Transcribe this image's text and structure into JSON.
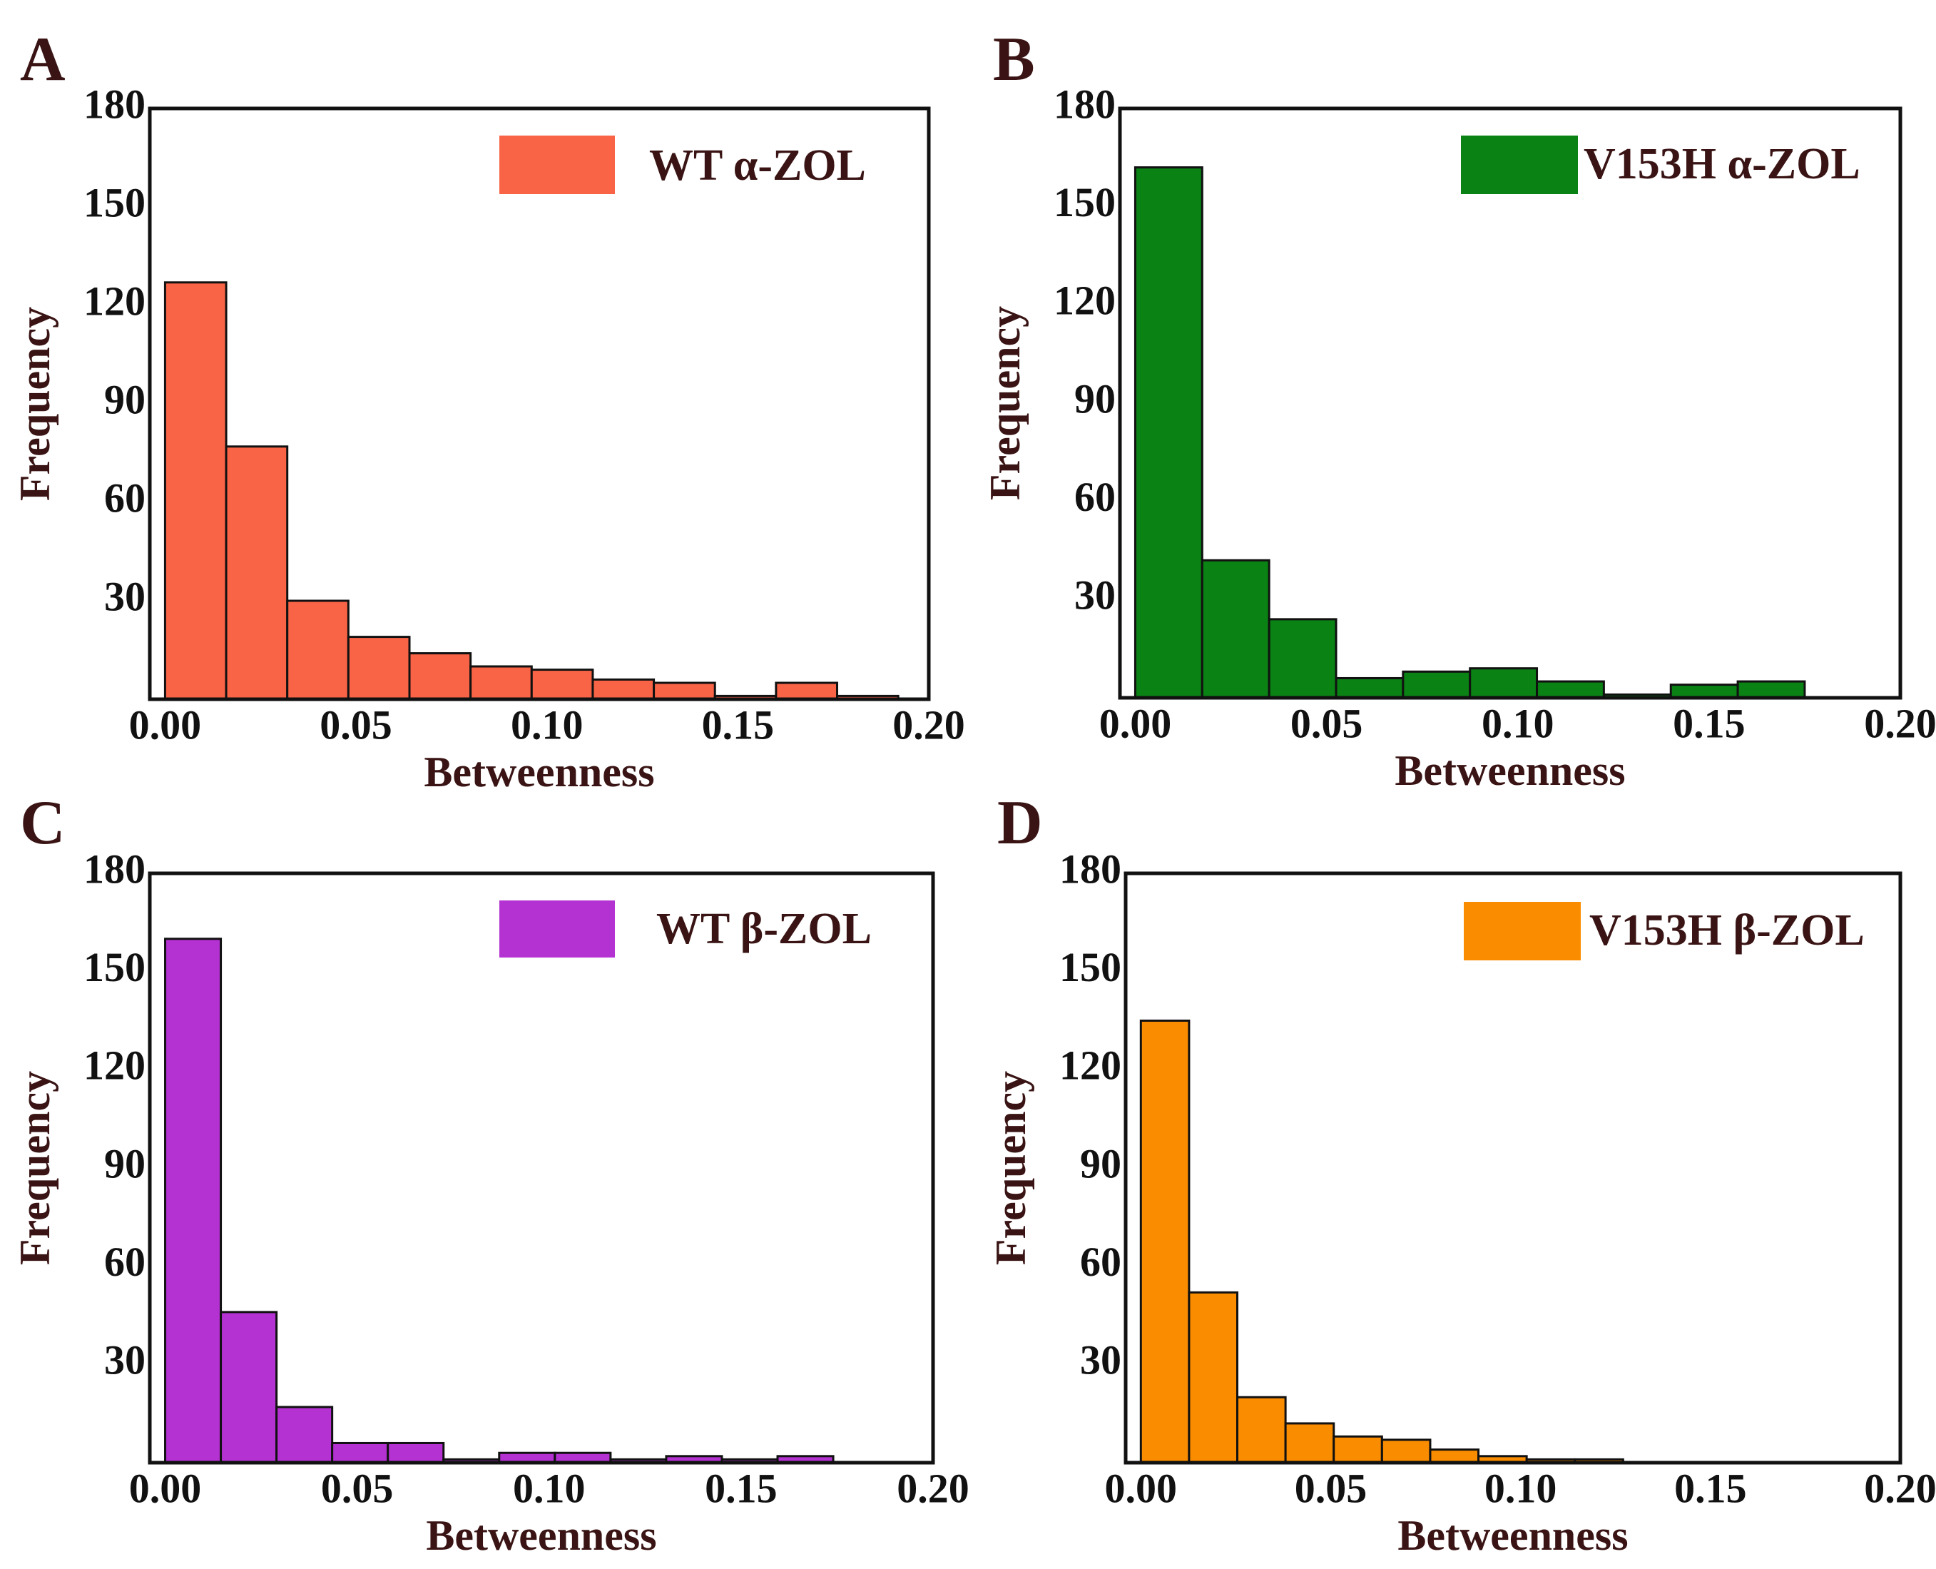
{
  "chart_data": [
    {
      "type": "bar",
      "panel": "A",
      "legend": "WT α-ZOL",
      "color": "#fa6446",
      "xlabel": "Betweenness",
      "ylabel": "Frequency",
      "xlim": [
        -0.004,
        0.2
      ],
      "ylim": [
        0,
        180
      ],
      "xticks": [
        "0.00",
        "0.05",
        "0.10",
        "0.15",
        "0.20"
      ],
      "yticks": [
        "30",
        "60",
        "90",
        "120",
        "150",
        "180"
      ],
      "bin_start": 0.0,
      "bin_width": 0.016,
      "values": [
        127,
        77,
        30,
        19,
        14,
        10,
        9,
        6,
        5,
        1,
        5,
        1
      ]
    },
    {
      "type": "bar",
      "panel": "B",
      "legend": "V153H α-ZOL",
      "color": "#0a8214",
      "xlabel": "Betweenness",
      "ylabel": "Frequency",
      "xlim": [
        -0.004,
        0.2
      ],
      "ylim": [
        0,
        180
      ],
      "xticks": [
        "0.00",
        "0.05",
        "0.10",
        "0.15",
        "0.20"
      ],
      "yticks": [
        "30",
        "60",
        "90",
        "120",
        "150",
        "180"
      ],
      "bin_start": 0.0,
      "bin_width": 0.0175,
      "values": [
        162,
        42,
        24,
        6,
        8,
        9,
        5,
        1,
        4,
        5
      ]
    },
    {
      "type": "bar",
      "panel": "C",
      "legend": "WT β-ZOL",
      "color": "#b432d2",
      "xlabel": "Betweenness",
      "ylabel": "Frequency",
      "xlim": [
        -0.004,
        0.2
      ],
      "ylim": [
        0,
        180
      ],
      "xticks": [
        "0.00",
        "0.05",
        "0.10",
        "0.15",
        "0.20"
      ],
      "yticks": [
        "30",
        "60",
        "90",
        "120",
        "150",
        "180"
      ],
      "bin_start": 0.0,
      "bin_width": 0.0145,
      "values": [
        160,
        46,
        17,
        6,
        6,
        1,
        3,
        3,
        1,
        2,
        1,
        2
      ]
    },
    {
      "type": "bar",
      "panel": "D",
      "legend": "V153H β-ZOL",
      "color": "#fa8c00",
      "xlabel": "Betweenness",
      "ylabel": "Frequency",
      "xlim": [
        -0.004,
        0.2
      ],
      "ylim": [
        0,
        180
      ],
      "xticks": [
        "0.00",
        "0.05",
        "0.10",
        "0.15",
        "0.20"
      ],
      "yticks": [
        "30",
        "60",
        "90",
        "120",
        "150",
        "180"
      ],
      "bin_start": 0.0,
      "bin_width": 0.0127,
      "values": [
        135,
        52,
        20,
        12,
        8,
        7,
        4,
        2,
        1,
        1
      ]
    }
  ]
}
